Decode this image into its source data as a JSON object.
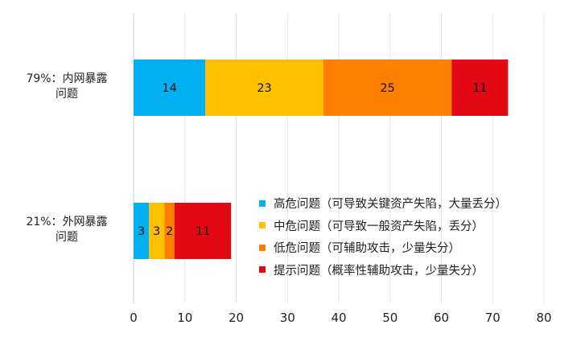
{
  "chart_data": {
    "type": "bar",
    "orientation": "horizontal",
    "stacked": true,
    "categories": [
      "79%：内网暴露\n问题",
      "21%：外网暴露\n问题"
    ],
    "series": [
      {
        "name": "高危问题（可导致关键资产失陷，大量丢分）",
        "color": "#00b0f0",
        "values": [
          14,
          3
        ]
      },
      {
        "name": "中危问题（可导致一般资产失陷，丢分）",
        "color": "#ffc000",
        "values": [
          23,
          3
        ]
      },
      {
        "name": "低危问题（可辅助攻击，少量失分）",
        "color": "#ff8000",
        "values": [
          25,
          2
        ]
      },
      {
        "name": "提示问题（概率性辅助攻击，少量失分）",
        "color": "#e30613",
        "values": [
          11,
          11
        ]
      }
    ],
    "xlim": [
      0,
      80
    ],
    "xticks": [
      0,
      10,
      20,
      30,
      40,
      50,
      60,
      70,
      80
    ],
    "grid": true,
    "legend_position": "lower-right"
  }
}
